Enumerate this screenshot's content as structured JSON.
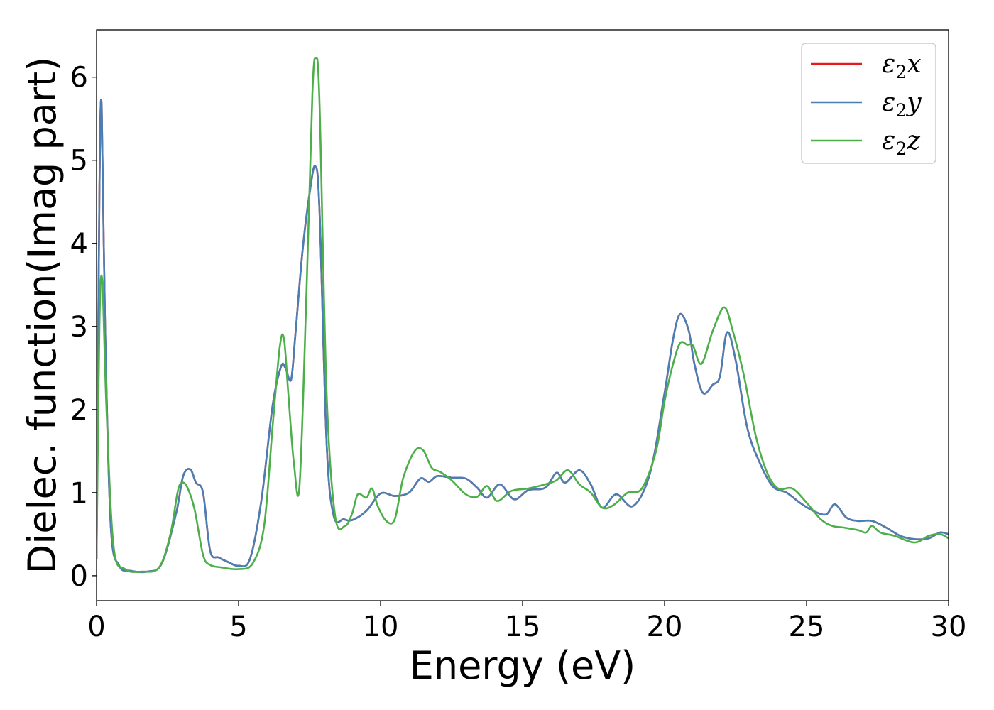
{
  "chart_data": {
    "type": "line",
    "title": "",
    "xlabel": "Energy (eV)",
    "ylabel": "Dielec. function(Imag part)",
    "xlim": [
      0,
      30
    ],
    "ylim": [
      -0.3,
      6.57
    ],
    "xticks": [
      0,
      5,
      10,
      15,
      20,
      25,
      30
    ],
    "yticks": [
      0,
      1,
      2,
      3,
      4,
      5,
      6
    ],
    "grid": false,
    "legend_position": "top-right",
    "series": [
      {
        "name": "ε2x",
        "legend_sub": "2",
        "legend_base": "ε",
        "legend_suffix": "x",
        "color": "#e41a1c",
        "x": [
          0,
          0.1,
          0.18,
          0.3,
          0.5,
          0.8,
          1.2,
          1.8,
          2.3,
          2.8,
          3.05,
          3.3,
          3.5,
          3.75,
          4.0,
          4.3,
          4.6,
          5.0,
          5.4,
          5.8,
          6.2,
          6.5,
          6.65,
          6.85,
          7.0,
          7.25,
          7.5,
          7.7,
          7.85,
          8.1,
          8.35,
          8.7,
          9.0,
          9.5,
          10.0,
          10.5,
          11.0,
          11.4,
          11.7,
          12.0,
          12.5,
          13.0,
          13.4,
          13.75,
          14.2,
          14.7,
          15.2,
          15.8,
          16.2,
          16.5,
          17.0,
          17.4,
          17.8,
          18.3,
          18.9,
          19.5,
          20.0,
          20.3,
          20.55,
          20.85,
          21.05,
          21.35,
          21.7,
          21.95,
          22.2,
          22.5,
          22.9,
          23.3,
          23.8,
          24.3,
          24.8,
          25.3,
          25.7,
          26.0,
          26.4,
          26.8,
          27.3,
          27.8,
          28.3,
          28.8,
          29.3,
          29.7,
          30.0
        ],
        "values": [
          0.2,
          4.6,
          5.65,
          3.0,
          0.6,
          0.12,
          0.06,
          0.05,
          0.15,
          0.75,
          1.2,
          1.28,
          1.12,
          1.0,
          0.3,
          0.22,
          0.17,
          0.12,
          0.2,
          0.9,
          2.05,
          2.52,
          2.5,
          2.36,
          2.9,
          3.9,
          4.6,
          4.93,
          4.4,
          1.6,
          0.72,
          0.68,
          0.67,
          0.78,
          0.99,
          0.96,
          1.0,
          1.17,
          1.13,
          1.2,
          1.18,
          1.17,
          1.06,
          0.94,
          1.1,
          0.92,
          1.03,
          1.06,
          1.24,
          1.12,
          1.27,
          1.1,
          0.82,
          0.98,
          0.84,
          1.25,
          2.2,
          2.85,
          3.15,
          2.95,
          2.55,
          2.2,
          2.3,
          2.4,
          2.93,
          2.6,
          1.8,
          1.4,
          1.08,
          1.0,
          0.87,
          0.77,
          0.74,
          0.86,
          0.7,
          0.66,
          0.66,
          0.58,
          0.48,
          0.44,
          0.45,
          0.52,
          0.5
        ]
      },
      {
        "name": "ε2y",
        "legend_sub": "2",
        "legend_base": "ε",
        "legend_suffix": "y",
        "color": "#4a7fb5",
        "x": [
          0,
          0.1,
          0.18,
          0.3,
          0.5,
          0.8,
          1.2,
          1.8,
          2.3,
          2.8,
          3.05,
          3.3,
          3.5,
          3.75,
          4.0,
          4.3,
          4.6,
          5.0,
          5.4,
          5.8,
          6.2,
          6.5,
          6.65,
          6.85,
          7.0,
          7.25,
          7.5,
          7.7,
          7.85,
          8.1,
          8.35,
          8.7,
          9.0,
          9.5,
          10.0,
          10.5,
          11.0,
          11.4,
          11.7,
          12.0,
          12.5,
          13.0,
          13.4,
          13.75,
          14.2,
          14.7,
          15.2,
          15.8,
          16.2,
          16.5,
          17.0,
          17.4,
          17.8,
          18.3,
          18.9,
          19.5,
          20.0,
          20.3,
          20.55,
          20.85,
          21.05,
          21.35,
          21.7,
          21.95,
          22.2,
          22.5,
          22.9,
          23.3,
          23.8,
          24.3,
          24.8,
          25.3,
          25.7,
          26.0,
          26.4,
          26.8,
          27.3,
          27.8,
          28.3,
          28.8,
          29.3,
          29.7,
          30.0
        ],
        "values": [
          0.2,
          4.6,
          5.65,
          3.0,
          0.6,
          0.12,
          0.06,
          0.05,
          0.15,
          0.75,
          1.2,
          1.28,
          1.12,
          1.0,
          0.3,
          0.22,
          0.17,
          0.12,
          0.2,
          0.9,
          2.05,
          2.52,
          2.5,
          2.36,
          2.9,
          3.9,
          4.6,
          4.93,
          4.4,
          1.6,
          0.72,
          0.68,
          0.67,
          0.78,
          0.99,
          0.96,
          1.0,
          1.17,
          1.13,
          1.2,
          1.18,
          1.17,
          1.06,
          0.94,
          1.1,
          0.92,
          1.03,
          1.06,
          1.24,
          1.12,
          1.27,
          1.1,
          0.82,
          0.98,
          0.84,
          1.25,
          2.2,
          2.85,
          3.15,
          2.95,
          2.55,
          2.2,
          2.3,
          2.4,
          2.93,
          2.6,
          1.8,
          1.4,
          1.08,
          1.0,
          0.87,
          0.77,
          0.74,
          0.86,
          0.7,
          0.66,
          0.66,
          0.58,
          0.48,
          0.44,
          0.45,
          0.52,
          0.5
        ]
      },
      {
        "name": "ε2z",
        "legend_sub": "2",
        "legend_base": "ε",
        "legend_suffix": "z",
        "color": "#4daf4a",
        "x": [
          0,
          0.1,
          0.2,
          0.35,
          0.6,
          1.0,
          1.6,
          2.2,
          2.6,
          2.85,
          3.0,
          3.2,
          3.45,
          3.75,
          4.0,
          4.4,
          5.0,
          5.5,
          5.9,
          6.2,
          6.45,
          6.6,
          6.75,
          6.95,
          7.15,
          7.4,
          7.6,
          7.72,
          7.85,
          8.1,
          8.4,
          8.75,
          9.0,
          9.2,
          9.5,
          9.7,
          9.9,
          10.2,
          10.5,
          10.8,
          11.2,
          11.5,
          11.8,
          12.1,
          12.5,
          13.0,
          13.4,
          13.75,
          14.1,
          14.6,
          15.2,
          15.8,
          16.2,
          16.6,
          17.0,
          17.4,
          17.8,
          18.2,
          18.7,
          19.2,
          19.7,
          20.0,
          20.3,
          20.55,
          20.8,
          21.0,
          21.3,
          21.7,
          22.1,
          22.4,
          22.8,
          23.2,
          23.6,
          24.0,
          24.5,
          25.0,
          25.5,
          25.9,
          26.3,
          26.8,
          27.1,
          27.3,
          27.6,
          28.1,
          28.8,
          29.3,
          29.7,
          30.0
        ],
        "values": [
          0.2,
          3.0,
          3.55,
          2.0,
          0.35,
          0.08,
          0.05,
          0.1,
          0.5,
          1.0,
          1.12,
          1.06,
          0.8,
          0.25,
          0.13,
          0.1,
          0.08,
          0.15,
          0.6,
          1.8,
          2.75,
          2.85,
          2.2,
          1.35,
          1.1,
          3.5,
          5.8,
          6.23,
          5.7,
          2.2,
          0.72,
          0.6,
          0.75,
          0.98,
          0.94,
          1.05,
          0.84,
          0.66,
          0.68,
          1.18,
          1.5,
          1.51,
          1.3,
          1.25,
          1.15,
          0.98,
          0.95,
          1.08,
          0.9,
          1.02,
          1.05,
          1.1,
          1.15,
          1.27,
          1.1,
          1.0,
          0.82,
          0.85,
          1.0,
          1.05,
          1.5,
          2.1,
          2.55,
          2.8,
          2.78,
          2.77,
          2.55,
          2.95,
          3.23,
          2.95,
          2.4,
          1.7,
          1.25,
          1.05,
          1.05,
          0.88,
          0.68,
          0.6,
          0.58,
          0.55,
          0.52,
          0.6,
          0.52,
          0.48,
          0.4,
          0.48,
          0.5,
          0.45
        ]
      }
    ]
  }
}
